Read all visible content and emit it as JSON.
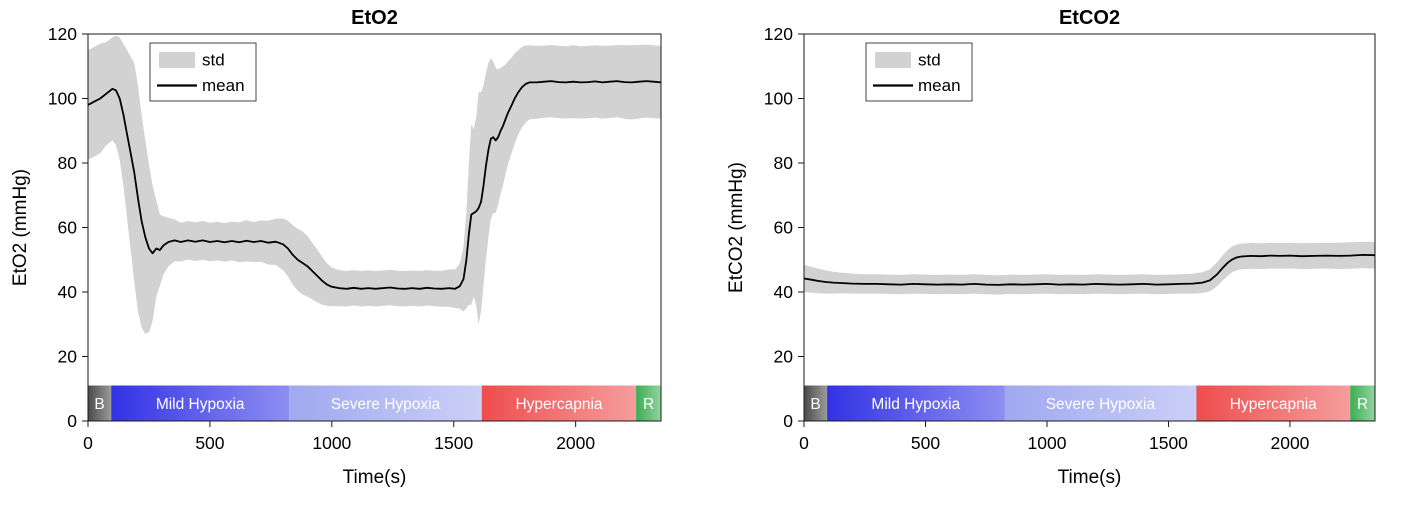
{
  "figure": {
    "background": "#ffffff"
  },
  "chart_data": [
    {
      "type": "line",
      "title": "EtO2",
      "xlabel": "Time(s)",
      "ylabel": "EtO2 (mmHg)",
      "xlim": [
        0,
        2350
      ],
      "ylim": [
        0,
        120
      ],
      "xticks": [
        0,
        500,
        1000,
        1500,
        2000
      ],
      "yticks": [
        0,
        20,
        40,
        60,
        80,
        100,
        120
      ],
      "legend": [
        "std",
        "mean"
      ],
      "legend_position": "top-left",
      "grid": false,
      "colors": {
        "std": "#d2d2d2",
        "mean": "#000000",
        "axis": "#1a1a1a",
        "text": "#000000"
      },
      "phase_top": 11,
      "phases": [
        {
          "label": "B",
          "start": 0,
          "end": 95,
          "color": "#4a4a4a"
        },
        {
          "label": "Mild Hypoxia",
          "start": 95,
          "end": 825,
          "color": "#3232e6"
        },
        {
          "label": "Severe Hypoxia",
          "start": 825,
          "end": 1615,
          "color": "#a0a8f0"
        },
        {
          "label": "Hypercapnia",
          "start": 1615,
          "end": 2248,
          "color": "#ee4d4d"
        },
        {
          "label": "R",
          "start": 2248,
          "end": 2350,
          "color": "#3cae54"
        }
      ],
      "points": [
        [
          0,
          98,
          17
        ],
        [
          25,
          99,
          17
        ],
        [
          50,
          100,
          17
        ],
        [
          75,
          101.5,
          16
        ],
        [
          100,
          103,
          16
        ],
        [
          115,
          102.5,
          17
        ],
        [
          130,
          100,
          19
        ],
        [
          145,
          95,
          22
        ],
        [
          160,
          89,
          26
        ],
        [
          175,
          83,
          30
        ],
        [
          190,
          77,
          34
        ],
        [
          205,
          69,
          35
        ],
        [
          220,
          62,
          33
        ],
        [
          235,
          57,
          30
        ],
        [
          250,
          53.5,
          26
        ],
        [
          265,
          52,
          21
        ],
        [
          280,
          53.5,
          15
        ],
        [
          295,
          53,
          11
        ],
        [
          310,
          54.5,
          9
        ],
        [
          330,
          55.5,
          7.5
        ],
        [
          355,
          56,
          6.5
        ],
        [
          380,
          55.5,
          6
        ],
        [
          410,
          56,
          6
        ],
        [
          440,
          55.6,
          6
        ],
        [
          470,
          56,
          6
        ],
        [
          500,
          55.5,
          6
        ],
        [
          530,
          55.8,
          6
        ],
        [
          560,
          55.4,
          6
        ],
        [
          590,
          55.8,
          6
        ],
        [
          620,
          55.4,
          6.2
        ],
        [
          650,
          55.9,
          6.4
        ],
        [
          680,
          55.5,
          6.2
        ],
        [
          710,
          55.8,
          6.4
        ],
        [
          740,
          55.3,
          6.8
        ],
        [
          770,
          55.6,
          7.2
        ],
        [
          800,
          54.8,
          8
        ],
        [
          820,
          53.5,
          8.6
        ],
        [
          840,
          51.5,
          9.2
        ],
        [
          860,
          50,
          9.6
        ],
        [
          880,
          49,
          9.8
        ],
        [
          900,
          48,
          9.4
        ],
        [
          920,
          46.5,
          8.8
        ],
        [
          940,
          45,
          8.2
        ],
        [
          960,
          43.5,
          7.4
        ],
        [
          980,
          42.3,
          6.6
        ],
        [
          1000,
          41.6,
          6
        ],
        [
          1030,
          41.2,
          5.6
        ],
        [
          1060,
          41,
          5.5
        ],
        [
          1090,
          41.3,
          5.5
        ],
        [
          1120,
          41,
          5.5
        ],
        [
          1150,
          41.2,
          5.5
        ],
        [
          1180,
          41,
          5.5
        ],
        [
          1210,
          41.2,
          5.5
        ],
        [
          1240,
          41.4,
          5.5
        ],
        [
          1270,
          41.1,
          5.5
        ],
        [
          1300,
          41,
          5.5
        ],
        [
          1330,
          41.2,
          5.5
        ],
        [
          1360,
          41,
          5.5
        ],
        [
          1390,
          41.3,
          5.5
        ],
        [
          1420,
          41.1,
          5.5
        ],
        [
          1450,
          41,
          5.6
        ],
        [
          1480,
          41.2,
          5.8
        ],
        [
          1505,
          41,
          6
        ],
        [
          1525,
          41.8,
          7
        ],
        [
          1540,
          44,
          10
        ],
        [
          1552,
          50,
          15
        ],
        [
          1562,
          58,
          22
        ],
        [
          1572,
          64,
          28
        ],
        [
          1582,
          64.5,
          26
        ],
        [
          1592,
          65,
          29
        ],
        [
          1602,
          66,
          36
        ],
        [
          1612,
          68,
          34
        ],
        [
          1622,
          73,
          31
        ],
        [
          1632,
          79,
          29
        ],
        [
          1642,
          84,
          27
        ],
        [
          1652,
          87.5,
          25
        ],
        [
          1662,
          88,
          23.5
        ],
        [
          1672,
          87,
          22.5
        ],
        [
          1682,
          88,
          21
        ],
        [
          1692,
          90,
          19.5
        ],
        [
          1702,
          91.5,
          18.5
        ],
        [
          1712,
          93.5,
          17
        ],
        [
          1722,
          95.5,
          16
        ],
        [
          1735,
          97.5,
          15
        ],
        [
          1750,
          100,
          14
        ],
        [
          1765,
          102,
          13
        ],
        [
          1780,
          103.5,
          12.5
        ],
        [
          1795,
          104.5,
          12
        ],
        [
          1810,
          105,
          11.5
        ],
        [
          1840,
          105,
          11.3
        ],
        [
          1870,
          105.2,
          11.2
        ],
        [
          1900,
          105.4,
          11.2
        ],
        [
          1930,
          105.1,
          11.2
        ],
        [
          1960,
          105,
          11.2
        ],
        [
          1990,
          105.2,
          11.3
        ],
        [
          2020,
          105,
          11.2
        ],
        [
          2050,
          105.1,
          11.2
        ],
        [
          2080,
          105.3,
          11.2
        ],
        [
          2110,
          105,
          11.3
        ],
        [
          2140,
          105.2,
          11.2
        ],
        [
          2170,
          105.4,
          11.2
        ],
        [
          2200,
          105.1,
          11.4
        ],
        [
          2230,
          105,
          11.5
        ],
        [
          2260,
          105.2,
          11.4
        ],
        [
          2290,
          105.4,
          11.3
        ],
        [
          2320,
          105.2,
          11.3
        ],
        [
          2350,
          105,
          11.3
        ]
      ]
    },
    {
      "type": "line",
      "title": "EtCO2",
      "xlabel": "Time(s)",
      "ylabel": "EtCO2 (mmHg)",
      "xlim": [
        0,
        2350
      ],
      "ylim": [
        0,
        120
      ],
      "xticks": [
        0,
        500,
        1000,
        1500,
        2000
      ],
      "yticks": [
        0,
        20,
        40,
        60,
        80,
        100,
        120
      ],
      "legend": [
        "std",
        "mean"
      ],
      "legend_position": "top-left",
      "grid": false,
      "colors": {
        "std": "#d2d2d2",
        "mean": "#000000",
        "axis": "#1a1a1a",
        "text": "#000000"
      },
      "phase_top": 11,
      "phases": [
        {
          "label": "B",
          "start": 0,
          "end": 95,
          "color": "#4a4a4a"
        },
        {
          "label": "Mild Hypoxia",
          "start": 95,
          "end": 825,
          "color": "#3232e6"
        },
        {
          "label": "Severe Hypoxia",
          "start": 825,
          "end": 1615,
          "color": "#a0a8f0"
        },
        {
          "label": "Hypercapnia",
          "start": 1615,
          "end": 2248,
          "color": "#ee4d4d"
        },
        {
          "label": "R",
          "start": 2248,
          "end": 2350,
          "color": "#3cae54"
        }
      ],
      "points": [
        [
          0,
          44.2,
          4.2
        ],
        [
          30,
          43.8,
          4
        ],
        [
          60,
          43.4,
          3.8
        ],
        [
          90,
          43.1,
          3.6
        ],
        [
          120,
          42.9,
          3.4
        ],
        [
          150,
          42.8,
          3.2
        ],
        [
          200,
          42.6,
          3.1
        ],
        [
          250,
          42.5,
          3
        ],
        [
          300,
          42.5,
          3
        ],
        [
          350,
          42.4,
          3
        ],
        [
          400,
          42.3,
          3
        ],
        [
          450,
          42.5,
          3
        ],
        [
          500,
          42.4,
          3
        ],
        [
          550,
          42.3,
          3
        ],
        [
          600,
          42.4,
          3
        ],
        [
          650,
          42.3,
          3
        ],
        [
          700,
          42.5,
          3
        ],
        [
          750,
          42.3,
          3
        ],
        [
          800,
          42.2,
          3
        ],
        [
          850,
          42.4,
          3
        ],
        [
          900,
          42.3,
          3
        ],
        [
          950,
          42.4,
          3
        ],
        [
          1000,
          42.5,
          3
        ],
        [
          1050,
          42.3,
          3
        ],
        [
          1100,
          42.4,
          3
        ],
        [
          1150,
          42.3,
          3
        ],
        [
          1200,
          42.5,
          3
        ],
        [
          1250,
          42.4,
          3
        ],
        [
          1300,
          42.3,
          3
        ],
        [
          1350,
          42.4,
          3
        ],
        [
          1400,
          42.5,
          3
        ],
        [
          1450,
          42.3,
          3
        ],
        [
          1500,
          42.4,
          3
        ],
        [
          1550,
          42.5,
          3
        ],
        [
          1600,
          42.6,
          3.1
        ],
        [
          1640,
          42.9,
          3.2
        ],
        [
          1670,
          43.6,
          3.4
        ],
        [
          1700,
          45.5,
          3.7
        ],
        [
          1720,
          47.2,
          3.9
        ],
        [
          1740,
          48.8,
          4
        ],
        [
          1760,
          50,
          4
        ],
        [
          1780,
          50.7,
          4
        ],
        [
          1800,
          51,
          4
        ],
        [
          1840,
          51.2,
          4
        ],
        [
          1880,
          51.1,
          4
        ],
        [
          1920,
          51.3,
          4
        ],
        [
          1960,
          51.2,
          4
        ],
        [
          2000,
          51.3,
          4
        ],
        [
          2050,
          51.1,
          4
        ],
        [
          2100,
          51.2,
          4
        ],
        [
          2150,
          51.3,
          4
        ],
        [
          2200,
          51.2,
          4.1
        ],
        [
          2250,
          51.3,
          4.1
        ],
        [
          2300,
          51.5,
          4.1
        ],
        [
          2350,
          51.4,
          4.2
        ]
      ]
    }
  ]
}
